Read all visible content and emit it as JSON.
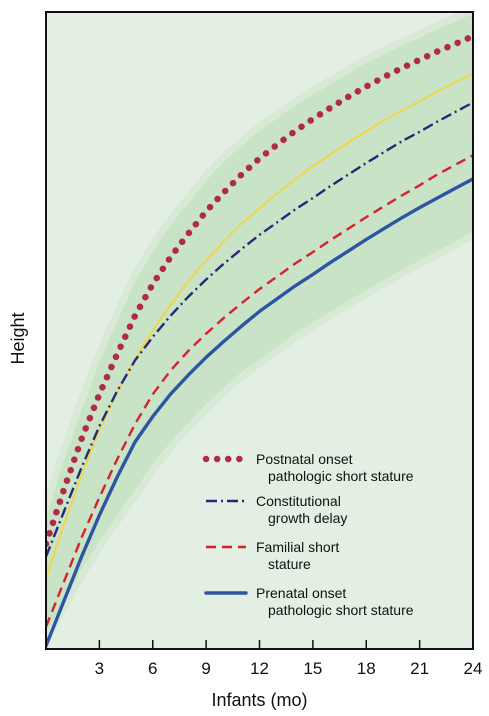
{
  "chart_data": {
    "type": "line",
    "xlabel": "Infants (mo)",
    "ylabel": "Height",
    "xlim": [
      0,
      24
    ],
    "ylim": [
      0,
      100
    ],
    "x_ticks": [
      3,
      6,
      9,
      12,
      15,
      18,
      21,
      24
    ],
    "y_ticks_labeled": false,
    "grid": false,
    "legend_position": "bottom-right",
    "colors": {
      "background": "#e3efe3",
      "normal_band": "#c9e3c6",
      "normal_band_edge": "#d8ead5",
      "frame": "#111111"
    },
    "x": [
      0,
      1,
      2,
      3,
      4,
      5,
      6,
      7,
      8,
      9,
      10,
      11,
      12,
      13,
      14,
      15,
      16,
      17,
      18,
      19,
      20,
      21,
      22,
      23,
      24
    ],
    "band": {
      "upper": [
        20.5,
        29.5,
        37.5,
        45,
        51.5,
        57.5,
        62.5,
        66.5,
        70,
        73.5,
        76.5,
        79,
        81.3,
        83.3,
        85.3,
        87,
        88.7,
        90.3,
        92,
        93.3,
        94.7,
        96,
        97.3,
        98.5,
        99.7
      ],
      "lower": [
        2.5,
        7.5,
        12.5,
        17,
        21,
        25,
        29,
        32.5,
        35.5,
        38.5,
        41,
        43.5,
        45.5,
        47.5,
        49.5,
        51.3,
        53,
        54.7,
        56.3,
        58,
        59.5,
        61,
        62.5,
        64,
        65.5
      ]
    },
    "series": [
      {
        "name": "Postnatal onset pathologic short stature",
        "style": "dotted",
        "color": "#b02a4a",
        "values": [
          16.5,
          25,
          33,
          40,
          46.3,
          52.3,
          57.3,
          61.5,
          65.2,
          68.7,
          71.7,
          74.5,
          77,
          79.2,
          81.3,
          83.2,
          85,
          86.7,
          88.3,
          89.8,
          91.2,
          92.5,
          93.8,
          95,
          96.2
        ]
      },
      {
        "name": "",
        "style": "solid",
        "color": "#f2d44a",
        "values": [
          11,
          19.5,
          27.3,
          34.5,
          40.3,
          45.5,
          50,
          54,
          57.8,
          61,
          64,
          66.8,
          69.2,
          71.5,
          73.7,
          75.8,
          77.7,
          79.5,
          81.3,
          83,
          84.5,
          86,
          87.5,
          89,
          90.3
        ]
      },
      {
        "name": "Constitutional growth delay",
        "style": "dash-dot",
        "color": "#25297a",
        "values": [
          14.5,
          21.5,
          28.5,
          35,
          40.5,
          45.3,
          49,
          52.3,
          55.3,
          58,
          60.5,
          62.8,
          65,
          67,
          69,
          70.8,
          72.7,
          74.5,
          76.3,
          78,
          79.7,
          81.2,
          82.8,
          84.3,
          85.8
        ]
      },
      {
        "name": "Familial short stature",
        "style": "dashed",
        "color": "#d8212f",
        "values": [
          3.5,
          10.5,
          17.5,
          23.8,
          29.8,
          35.3,
          40,
          43.7,
          46.8,
          49.5,
          52,
          54.3,
          56.5,
          58.5,
          60.5,
          62.3,
          64.2,
          66,
          67.8,
          69.5,
          71.2,
          72.8,
          74.5,
          76,
          77.5
        ]
      },
      {
        "name": "Prenatal onset pathologic short stature",
        "style": "solid-thick",
        "color": "#2d55a3",
        "values": [
          0.5,
          7.5,
          14.5,
          21,
          27,
          32.5,
          36.5,
          40,
          43,
          45.8,
          48.3,
          50.7,
          53,
          55,
          57,
          58.8,
          60.7,
          62.5,
          64.3,
          66,
          67.7,
          69.3,
          70.8,
          72.3,
          73.8
        ]
      }
    ],
    "legend": [
      {
        "line1": "Postnatal onset",
        "line2": "pathologic short stature",
        "style": "dotted",
        "color": "#b02a4a"
      },
      {
        "line1": "Constitutional",
        "line2": "growth delay",
        "style": "dash-dot",
        "color": "#25297a"
      },
      {
        "line1": "Familial short",
        "line2": "stature",
        "style": "dashed",
        "color": "#d8212f"
      },
      {
        "line1": "Prenatal onset",
        "line2": "pathologic short stature",
        "style": "solid-thick",
        "color": "#2d55a3"
      }
    ]
  }
}
